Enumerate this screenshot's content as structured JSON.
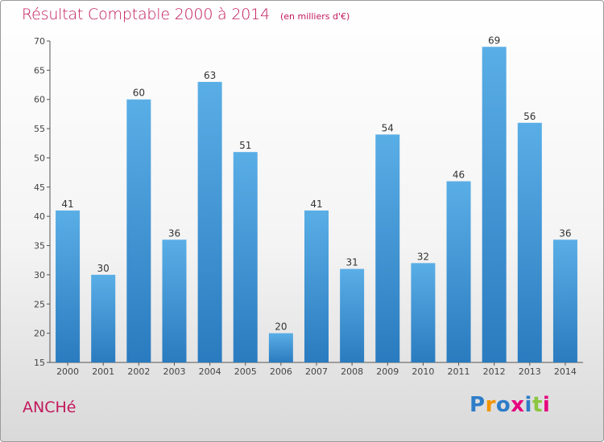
{
  "title": "Résultat Comptable 2000 à 2014",
  "subtitle": "(en milliers d'€)",
  "commune": "ANCHé",
  "logo": {
    "letters": [
      "P",
      "r",
      "o",
      "x",
      "i",
      "t",
      "i"
    ],
    "colors": [
      "#2e7dc9",
      "#f29400",
      "#2e7dc9",
      "#e6007e",
      "#2e7dc9",
      "#8cc63f",
      "#e6007e"
    ]
  },
  "chart_data": {
    "type": "bar",
    "categories": [
      "2000",
      "2001",
      "2002",
      "2003",
      "2004",
      "2005",
      "2006",
      "2007",
      "2008",
      "2009",
      "2010",
      "2011",
      "2012",
      "2013",
      "2014"
    ],
    "values": [
      41,
      30,
      60,
      36,
      63,
      51,
      20,
      41,
      31,
      54,
      32,
      46,
      69,
      56,
      36
    ],
    "ylim": [
      15,
      70
    ],
    "yticks": [
      15,
      20,
      25,
      30,
      35,
      40,
      45,
      50,
      55,
      60,
      65,
      70
    ],
    "grid": false,
    "bar_color_top": "#5aaee6",
    "bar_color_bottom": "#2a7bbf"
  }
}
